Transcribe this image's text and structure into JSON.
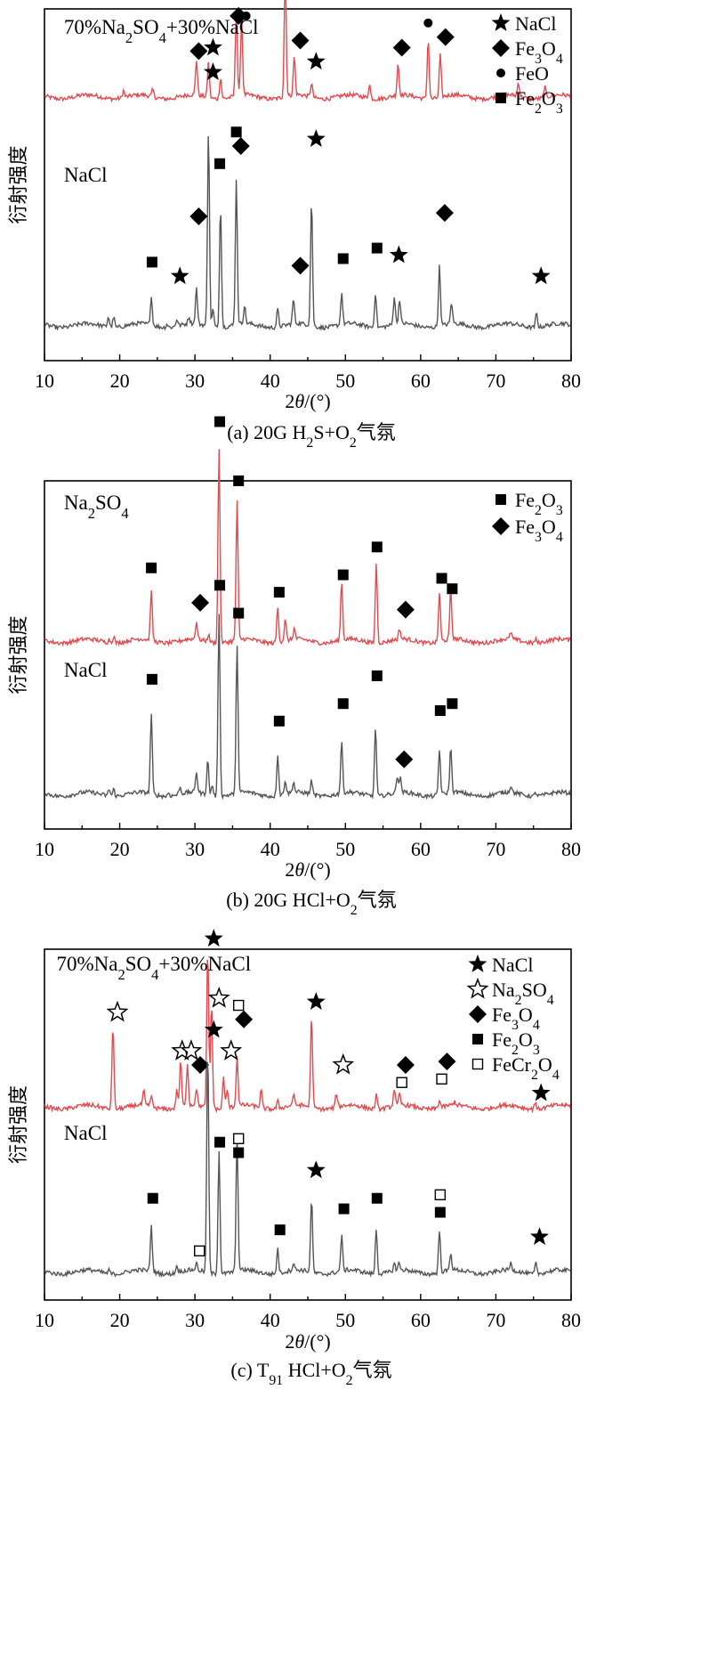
{
  "colors": {
    "red": "#e24a4f",
    "gray": "#555555",
    "black": "#000000"
  },
  "chart_data": [
    {
      "type": "line",
      "caption": "(a) 20G H2S+O2气氛",
      "xlabel": "2θ/(°)",
      "ylabel": "衍射强度",
      "xlim": [
        10,
        80
      ],
      "xticks": [
        10,
        20,
        30,
        40,
        50,
        60,
        70,
        80
      ],
      "legend_position": "top-right",
      "legend": [
        {
          "marker": "star",
          "label": "NaCl"
        },
        {
          "marker": "diamond",
          "label": "Fe3O4"
        },
        {
          "marker": "circle",
          "label": "FeO"
        },
        {
          "marker": "square",
          "label": "Fe2O3"
        }
      ],
      "series": [
        {
          "name": "70%Na2SO4+30%NaCl",
          "color": "red",
          "baseline": 0.75,
          "peaks": [
            [
              20.5,
              0.02
            ],
            [
              24.4,
              0.02
            ],
            [
              30.2,
              0.1
            ],
            [
              31.8,
              0.1
            ],
            [
              33.4,
              0.06
            ],
            [
              35.5,
              0.25
            ],
            [
              36.2,
              0.22
            ],
            [
              42,
              0.36
            ],
            [
              43.2,
              0.11
            ],
            [
              45.5,
              0.04
            ],
            [
              53.2,
              0.04
            ],
            [
              57,
              0.09
            ],
            [
              61,
              0.17
            ],
            [
              62.6,
              0.12
            ],
            [
              73,
              0.04
            ],
            [
              76.5,
              0.03
            ]
          ],
          "markers": [
            {
              "x": 30.5,
              "y": 0.88,
              "m": "diamond"
            },
            {
              "x": 32.4,
              "y": 0.89,
              "m": "star"
            },
            {
              "x": 35.8,
              "y": 0.98,
              "m": "diamond"
            },
            {
              "x": 36.8,
              "y": 0.98,
              "m": "circle"
            },
            {
              "x": 42,
              "y": 1.13,
              "m": "circle"
            },
            {
              "x": 44,
              "y": 0.91,
              "m": "diamond"
            },
            {
              "x": 46.1,
              "y": 0.85,
              "m": "star"
            },
            {
              "x": 57.5,
              "y": 0.89,
              "m": "diamond"
            },
            {
              "x": 61,
              "y": 0.96,
              "m": "circle"
            },
            {
              "x": 63.3,
              "y": 0.92,
              "m": "diamond"
            }
          ],
          "label": {
            "text": "70%Na2SO4+30%NaCl",
            "x": 12
          }
        },
        {
          "name": "NaCl",
          "color": "gray",
          "baseline": 0.1,
          "peaks": [
            [
              18.5,
              0.03
            ],
            [
              19.2,
              0.03
            ],
            [
              24.2,
              0.08
            ],
            [
              26.3,
              0.01
            ],
            [
              27.6,
              0.02
            ],
            [
              29.2,
              0.02
            ],
            [
              30.2,
              0.1
            ],
            [
              31.8,
              0.56
            ],
            [
              32.4,
              0.05
            ],
            [
              33.4,
              0.35
            ],
            [
              35.5,
              0.41
            ],
            [
              36.6,
              0.05
            ],
            [
              41,
              0.05
            ],
            [
              43.1,
              0.07
            ],
            [
              45.5,
              0.36
            ],
            [
              49.5,
              0.09
            ],
            [
              54,
              0.1
            ],
            [
              56.5,
              0.08
            ],
            [
              57.2,
              0.07
            ],
            [
              62.5,
              0.17
            ],
            [
              64.1,
              0.06
            ],
            [
              75.4,
              0.04
            ]
          ],
          "markers": [
            {
              "x": 24.3,
              "y": 0.28,
              "m": "square"
            },
            {
              "x": 28,
              "y": 0.24,
              "m": "star"
            },
            {
              "x": 30.5,
              "y": 0.41,
              "m": "diamond"
            },
            {
              "x": 32.4,
              "y": 0.82,
              "m": "star"
            },
            {
              "x": 33.3,
              "y": 0.56,
              "m": "square"
            },
            {
              "x": 35.5,
              "y": 0.65,
              "m": "square"
            },
            {
              "x": 36.1,
              "y": 0.61,
              "m": "diamond"
            },
            {
              "x": 44,
              "y": 0.27,
              "m": "diamond"
            },
            {
              "x": 46.1,
              "y": 0.63,
              "m": "star"
            },
            {
              "x": 49.7,
              "y": 0.29,
              "m": "square"
            },
            {
              "x": 54.2,
              "y": 0.32,
              "m": "square"
            },
            {
              "x": 57.1,
              "y": 0.3,
              "m": "star"
            },
            {
              "x": 63.2,
              "y": 0.42,
              "m": "diamond"
            },
            {
              "x": 76,
              "y": 0.24,
              "m": "star"
            }
          ],
          "label": {
            "text": "NaCl",
            "x": 12
          }
        }
      ]
    },
    {
      "type": "line",
      "caption": "(b) 20G HCl+O2气氛",
      "xlabel": "2θ/(°)",
      "ylabel": "衍射强度",
      "xlim": [
        10,
        80
      ],
      "xticks": [
        10,
        20,
        30,
        40,
        50,
        60,
        70,
        80
      ],
      "legend_position": "top-right",
      "legend": [
        {
          "marker": "square",
          "label": "Fe2O3"
        },
        {
          "marker": "diamond",
          "label": "Fe3O4"
        }
      ],
      "series": [
        {
          "name": "Na2SO4",
          "color": "red",
          "baseline": 0.54,
          "peaks": [
            [
              18.6,
              0.01
            ],
            [
              19.2,
              0.02
            ],
            [
              24.2,
              0.14
            ],
            [
              30.2,
              0.05
            ],
            [
              31.8,
              0.02
            ],
            [
              33.2,
              0.56
            ],
            [
              35.6,
              0.4
            ],
            [
              41,
              0.1
            ],
            [
              42,
              0.06
            ],
            [
              43.2,
              0.03
            ],
            [
              49.5,
              0.17
            ],
            [
              54.1,
              0.23
            ],
            [
              57.2,
              0.03
            ],
            [
              62.5,
              0.14
            ],
            [
              64,
              0.14
            ],
            [
              72,
              0.02
            ],
            [
              75.3,
              0.01
            ]
          ],
          "markers": [
            {
              "x": 24.2,
              "y": 0.75,
              "m": "square"
            },
            {
              "x": 30.7,
              "y": 0.65,
              "m": "diamond"
            },
            {
              "x": 33.3,
              "y": 1.17,
              "m": "square"
            },
            {
              "x": 35.8,
              "y": 1.0,
              "m": "square"
            },
            {
              "x": 41.2,
              "y": 0.68,
              "m": "square"
            },
            {
              "x": 49.7,
              "y": 0.73,
              "m": "square"
            },
            {
              "x": 54.2,
              "y": 0.81,
              "m": "square"
            },
            {
              "x": 58,
              "y": 0.63,
              "m": "diamond"
            },
            {
              "x": 62.8,
              "y": 0.72,
              "m": "square"
            },
            {
              "x": 64.2,
              "y": 0.69,
              "m": "square"
            }
          ],
          "label": {
            "text": "Na2SO4",
            "x": 12
          }
        },
        {
          "name": "NaCl",
          "color": "gray",
          "baseline": 0.1,
          "peaks": [
            [
              18.6,
              0.02
            ],
            [
              19.2,
              0.02
            ],
            [
              24.2,
              0.23
            ],
            [
              26.5,
              0.01
            ],
            [
              28,
              0.02
            ],
            [
              30.2,
              0.06
            ],
            [
              31.7,
              0.1
            ],
            [
              32.3,
              0.03
            ],
            [
              33.2,
              0.53
            ],
            [
              35.6,
              0.43
            ],
            [
              41,
              0.12
            ],
            [
              42,
              0.04
            ],
            [
              43.1,
              0.03
            ],
            [
              45.5,
              0.04
            ],
            [
              49.5,
              0.15
            ],
            [
              54,
              0.2
            ],
            [
              56.9,
              0.05
            ],
            [
              57.3,
              0.04
            ],
            [
              62.5,
              0.13
            ],
            [
              64,
              0.13
            ],
            [
              72,
              0.02
            ],
            [
              75.3,
              0.01
            ]
          ],
          "markers": [
            {
              "x": 24.3,
              "y": 0.43,
              "m": "square"
            },
            {
              "x": 33.3,
              "y": 0.7,
              "m": "square"
            },
            {
              "x": 35.8,
              "y": 0.62,
              "m": "square"
            },
            {
              "x": 41.2,
              "y": 0.31,
              "m": "square"
            },
            {
              "x": 49.7,
              "y": 0.36,
              "m": "square"
            },
            {
              "x": 54.2,
              "y": 0.44,
              "m": "square"
            },
            {
              "x": 57.8,
              "y": 0.2,
              "m": "diamond"
            },
            {
              "x": 62.6,
              "y": 0.34,
              "m": "square"
            },
            {
              "x": 64.2,
              "y": 0.36,
              "m": "square"
            }
          ],
          "label": {
            "text": "NaCl",
            "x": 12
          }
        }
      ]
    },
    {
      "type": "line",
      "caption": "(c) T91 HCl+O2气氛",
      "xlabel": "2θ/(°)",
      "ylabel": "衍射强度",
      "xlim": [
        10,
        80
      ],
      "xticks": [
        10,
        20,
        30,
        40,
        50,
        60,
        70,
        80
      ],
      "legend_position": "top-right",
      "legend": [
        {
          "marker": "star",
          "label": "NaCl"
        },
        {
          "marker": "star-open",
          "label": "Na2SO4"
        },
        {
          "marker": "diamond",
          "label": "Fe3O4"
        },
        {
          "marker": "square",
          "label": "Fe2O3"
        },
        {
          "marker": "square-open",
          "label": "FeCr2O4"
        }
      ],
      "series": [
        {
          "name": "70%Na2SO4+30%NaCl",
          "color": "red",
          "baseline": 0.55,
          "peaks": [
            [
              19.1,
              0.24
            ],
            [
              23.2,
              0.04
            ],
            [
              24.2,
              0.03
            ],
            [
              27.6,
              0.05
            ],
            [
              28.1,
              0.13
            ],
            [
              29,
              0.12
            ],
            [
              30.2,
              0.05
            ],
            [
              31.7,
              0.45
            ],
            [
              32.2,
              0.3
            ],
            [
              33.8,
              0.09
            ],
            [
              34.3,
              0.05
            ],
            [
              35.6,
              0.14
            ],
            [
              38.8,
              0.05
            ],
            [
              41,
              0.02
            ],
            [
              43.1,
              0.03
            ],
            [
              45.5,
              0.26
            ],
            [
              48.8,
              0.04
            ],
            [
              54.1,
              0.04
            ],
            [
              56.5,
              0.05
            ],
            [
              57.2,
              0.03
            ],
            [
              62.5,
              0.02
            ],
            [
              64.5,
              0.01
            ],
            [
              75.2,
              0.02
            ]
          ],
          "markers": [
            {
              "x": 19.7,
              "y": 0.82,
              "m": "star-open"
            },
            {
              "x": 28.3,
              "y": 0.71,
              "m": "star-open"
            },
            {
              "x": 29.5,
              "y": 0.71,
              "m": "star-open"
            },
            {
              "x": 30.7,
              "y": 0.67,
              "m": "diamond"
            },
            {
              "x": 32.5,
              "y": 1.03,
              "m": "star"
            },
            {
              "x": 33.2,
              "y": 0.86,
              "m": "star-open"
            },
            {
              "x": 34.8,
              "y": 0.71,
              "m": "star-open"
            },
            {
              "x": 35.8,
              "y": 0.84,
              "m": "square-open"
            },
            {
              "x": 36.5,
              "y": 0.8,
              "m": "diamond"
            },
            {
              "x": 46.1,
              "y": 0.85,
              "m": "star"
            },
            {
              "x": 49.7,
              "y": 0.67,
              "m": "star-open"
            },
            {
              "x": 57.5,
              "y": 0.62,
              "m": "square-open"
            },
            {
              "x": 58,
              "y": 0.67,
              "m": "diamond"
            },
            {
              "x": 62.8,
              "y": 0.63,
              "m": "square-open"
            },
            {
              "x": 63.5,
              "y": 0.68,
              "m": "diamond"
            },
            {
              "x": 76,
              "y": 0.59,
              "m": "star"
            }
          ],
          "label": {
            "text": "70%Na2SO4+30%NaCl",
            "x": 11
          }
        },
        {
          "name": "NaCl",
          "color": "gray",
          "baseline": 0.08,
          "peaks": [
            [
              18.6,
              0.01
            ],
            [
              24.2,
              0.13
            ],
            [
              27.6,
              0.02
            ],
            [
              30.2,
              0.02
            ],
            [
              31.7,
              0.65
            ],
            [
              33.2,
              0.35
            ],
            [
              35.6,
              0.39
            ],
            [
              41,
              0.07
            ],
            [
              43.1,
              0.02
            ],
            [
              45.5,
              0.21
            ],
            [
              49.5,
              0.1
            ],
            [
              54.1,
              0.13
            ],
            [
              56.5,
              0.02
            ],
            [
              57.1,
              0.02
            ],
            [
              62.5,
              0.12
            ],
            [
              64,
              0.05
            ],
            [
              72,
              0.02
            ],
            [
              75.3,
              0.03
            ]
          ],
          "markers": [
            {
              "x": 24.4,
              "y": 0.29,
              "m": "square"
            },
            {
              "x": 30.6,
              "y": 0.14,
              "m": "square-open"
            },
            {
              "x": 32.5,
              "y": 0.77,
              "m": "star"
            },
            {
              "x": 33.3,
              "y": 0.45,
              "m": "square"
            },
            {
              "x": 35.8,
              "y": 0.46,
              "m": "square-open"
            },
            {
              "x": 35.8,
              "y": 0.42,
              "m": "square"
            },
            {
              "x": 41.3,
              "y": 0.2,
              "m": "square"
            },
            {
              "x": 46.1,
              "y": 0.37,
              "m": "star"
            },
            {
              "x": 49.8,
              "y": 0.26,
              "m": "square"
            },
            {
              "x": 54.2,
              "y": 0.29,
              "m": "square"
            },
            {
              "x": 62.6,
              "y": 0.3,
              "m": "square-open"
            },
            {
              "x": 62.6,
              "y": 0.25,
              "m": "square"
            },
            {
              "x": 75.8,
              "y": 0.18,
              "m": "star"
            }
          ],
          "label": {
            "text": "NaCl",
            "x": 12
          }
        }
      ]
    }
  ]
}
